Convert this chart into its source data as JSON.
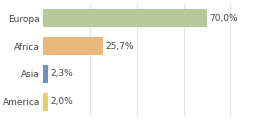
{
  "categories": [
    "Europa",
    "Africa",
    "Asia",
    "America"
  ],
  "values": [
    70.0,
    25.7,
    2.3,
    2.0
  ],
  "labels": [
    "70,0%",
    "25,7%",
    "2,3%",
    "2,0%"
  ],
  "bar_colors": [
    "#b5c99a",
    "#e8b87a",
    "#7090bb",
    "#e8d060"
  ],
  "background_color": "#ffffff",
  "xlim": [
    0,
    100
  ],
  "bar_height": 0.62,
  "label_fontsize": 6.5,
  "tick_fontsize": 6.5,
  "grid_color": "#dddddd"
}
